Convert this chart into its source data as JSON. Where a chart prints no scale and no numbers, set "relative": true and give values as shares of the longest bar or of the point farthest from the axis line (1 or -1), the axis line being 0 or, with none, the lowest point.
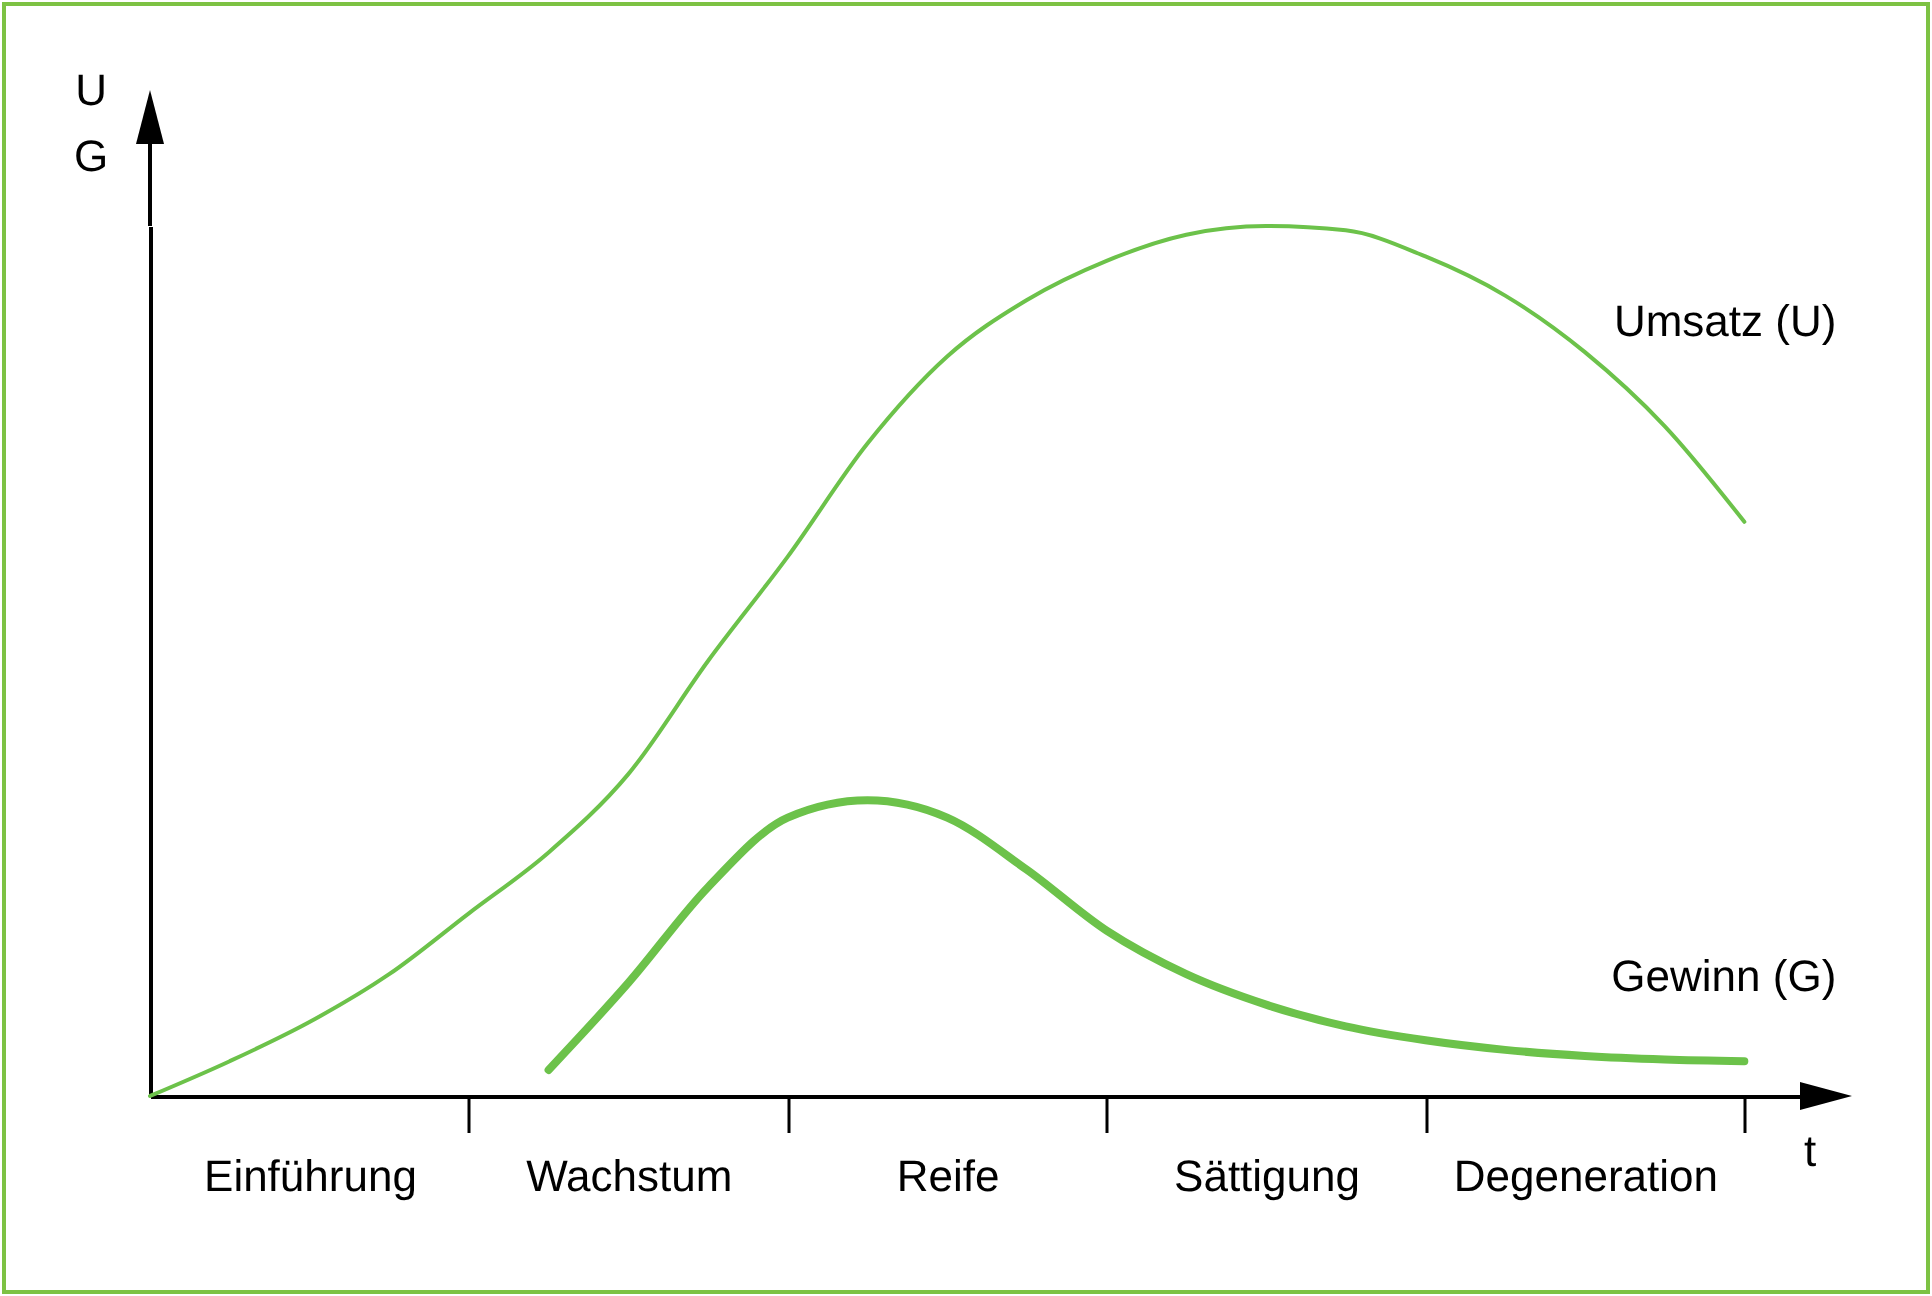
{
  "chart_data": {
    "type": "line",
    "relative": true,
    "ylabel": "U\nG",
    "xlabel": "t",
    "grid": false,
    "marker": "none",
    "line_style": "solid",
    "categories": [
      null,
      null,
      "Einführung",
      null,
      null,
      null,
      "Wachstum",
      null,
      null,
      null,
      "Reife",
      null,
      null,
      null,
      "Sättigung",
      null,
      null,
      null,
      "Degeneration",
      null,
      null
    ],
    "series": [
      {
        "name": "Umsatz (U)",
        "color": "#6cc24a",
        "values": [
          0,
          0.04,
          0.085,
          0.14,
          0.21,
          0.28,
          0.37,
          0.5,
          0.62,
          0.75,
          0.85,
          0.915,
          0.96,
          0.99,
          1,
          0.995,
          0.965,
          0.92,
          0.855,
          0.77,
          0.66
        ]
      },
      {
        "name": "Gewinn (G)",
        "color": "#6cc24a",
        "values": [
          null,
          null,
          null,
          null,
          null,
          0.03,
          0.13,
          0.24,
          0.32,
          0.34,
          0.32,
          0.26,
          0.19,
          0.14,
          0.105,
          0.08,
          0.064,
          0.053,
          0.046,
          0.042,
          0.04
        ]
      }
    ]
  }
}
